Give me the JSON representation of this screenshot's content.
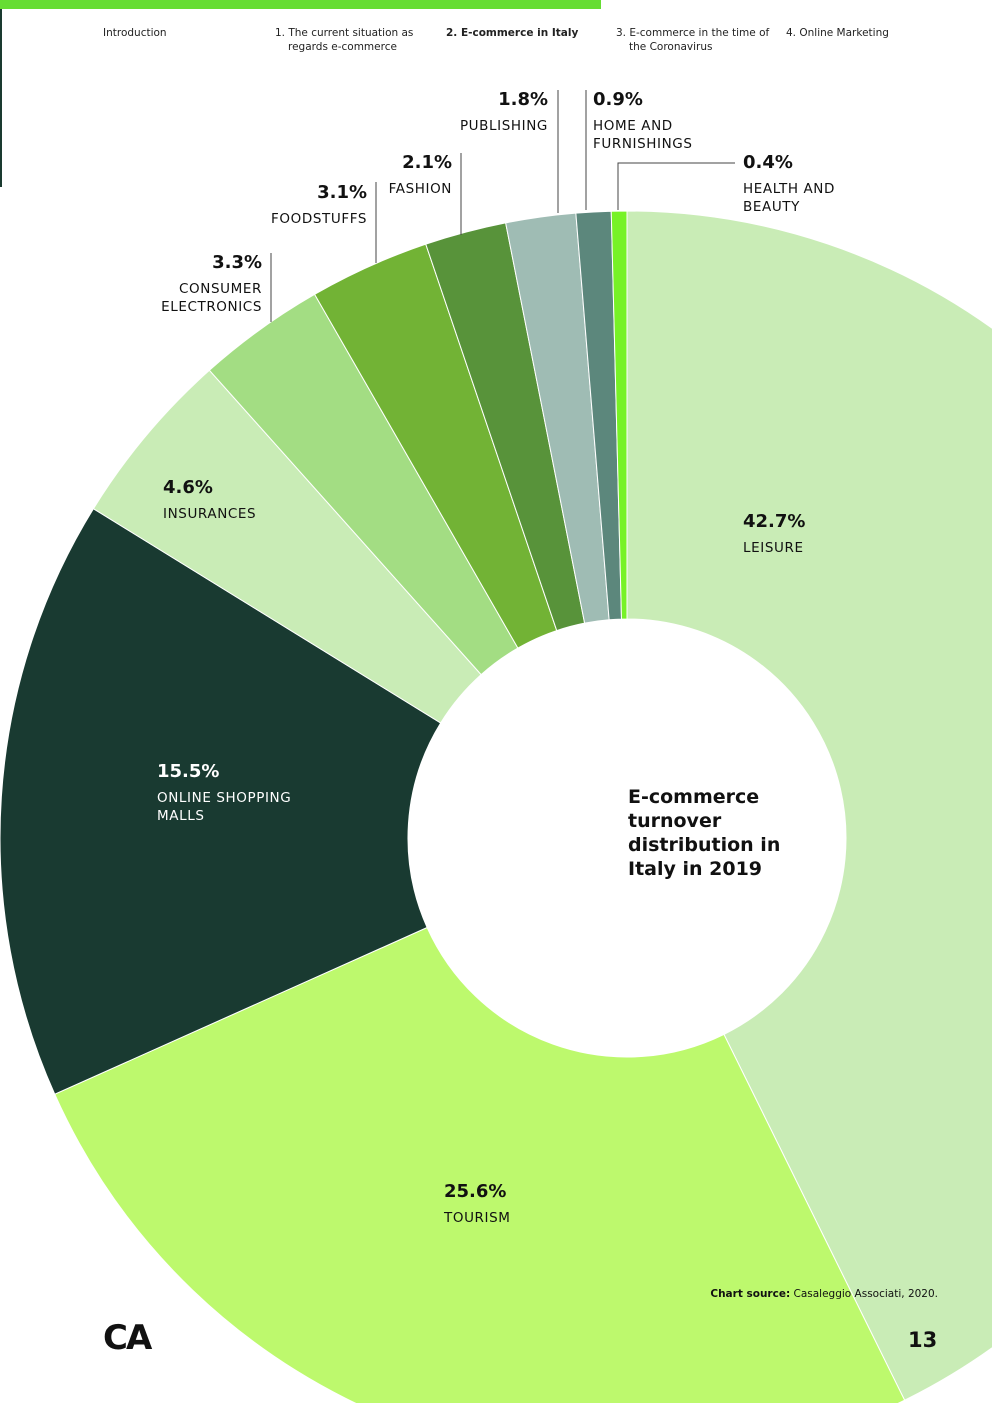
{
  "nav": {
    "items": [
      {
        "label": "Introduction",
        "line2": ""
      },
      {
        "label": "1. The current situation as",
        "line2": "regards e-commerce"
      },
      {
        "label": "2. E-commerce in Italy",
        "line2": ""
      },
      {
        "label": "3. E-commerce in the time of",
        "line2": "the Coronavirus"
      },
      {
        "label": "4. Online Marketing",
        "line2": ""
      }
    ]
  },
  "chart_data": {
    "type": "pie",
    "variant": "donut",
    "title": "E-commerce turnover distribution in Italy in 2019",
    "slices": [
      {
        "label": "LEISURE",
        "value": 42.7,
        "display": "42.7%",
        "color": "#c9ecb6"
      },
      {
        "label": "TOURISM",
        "value": 25.6,
        "display": "25.6%",
        "color": "#bdf96d"
      },
      {
        "label": "ONLINE SHOPPING MALLS",
        "value": 15.5,
        "display": "15.5%",
        "color": "#193a31"
      },
      {
        "label": "INSURANCES",
        "value": 4.6,
        "display": "4.6%",
        "color": "#c9ecb6"
      },
      {
        "label": "CONSUMER ELECTRONICS",
        "value": 3.3,
        "display": "3.3%",
        "color": "#a3dd83"
      },
      {
        "label": "FOODSTUFFS",
        "value": 3.1,
        "display": "3.1%",
        "color": "#72b335"
      },
      {
        "label": "FASHION",
        "value": 2.1,
        "display": "2.1%",
        "color": "#58933a"
      },
      {
        "label": "PUBLISHING",
        "value": 1.8,
        "display": "1.8%",
        "color": "#9fbcb4"
      },
      {
        "label": "HOME AND FURNISHINGS",
        "value": 0.9,
        "display": "0.9%",
        "color": "#5c877c"
      },
      {
        "label": "HEALTH AND BEAUTY",
        "value": 0.4,
        "display": "0.4%",
        "color": "#77f227"
      }
    ]
  },
  "source": {
    "prefix": "Chart source:",
    "text": "Casaleggio Associati, 2020."
  },
  "logo": "CA",
  "page_number": "13"
}
